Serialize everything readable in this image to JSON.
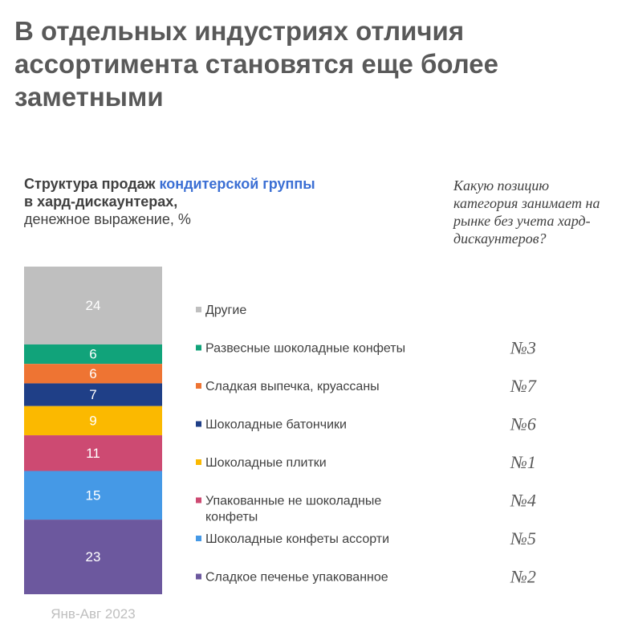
{
  "title": "В отдельных индустриях отличия ассортимента становятся еще более заметными",
  "subtitle": {
    "prefix": "Структура продаж ",
    "highlight": "кондитерской группы",
    "line2": "в хард-дискаунтерах,",
    "line3": "денежное выражение, %"
  },
  "question": "Какую позицию категория занимает на рынке без учета хард-дискаунтеров?",
  "chart_data": {
    "type": "bar",
    "stacked": true,
    "x": [
      "Янв-Авг 2023"
    ],
    "ylim": [
      0,
      101
    ],
    "segments": [
      {
        "name": "Другие",
        "value": 24,
        "color": "#bfbfbf",
        "rank": ""
      },
      {
        "name": "Развесные шоколадные конфеты",
        "value": 6,
        "color": "#11a37a",
        "rank": "№3"
      },
      {
        "name": "Сладкая выпечка, круассаны",
        "value": 6,
        "color": "#ee7433",
        "rank": "№7"
      },
      {
        "name": "Шоколадные батончики",
        "value": 7,
        "color": "#1f3f87",
        "rank": "№6"
      },
      {
        "name": "Шоколадные плитки",
        "value": 9,
        "color": "#fbb900",
        "rank": "№1"
      },
      {
        "name": "Упакованные не шоколадные конфеты",
        "value": 11,
        "color": "#cd4a72",
        "rank": "№4"
      },
      {
        "name": "Шоколадные конфеты ассорти",
        "value": 15,
        "color": "#4599e6",
        "rank": "№5"
      },
      {
        "name": "Сладкое печенье упакованное",
        "value": 23,
        "color": "#6c589e",
        "rank": "№2"
      }
    ]
  }
}
